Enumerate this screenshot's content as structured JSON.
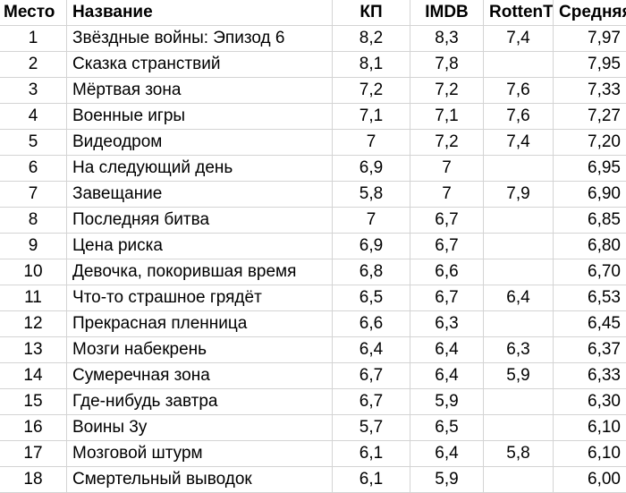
{
  "header": {
    "rank": "Место",
    "title": "Название",
    "kp": "КП",
    "imdb": "IMDB",
    "rotten": "RottenT",
    "avg": "Средняя"
  },
  "rows": [
    {
      "rank": "1",
      "title": "Звёздные войны: Эпизод 6",
      "kp": "8,2",
      "imdb": "8,3",
      "rotten": "7,4",
      "avg": "7,97"
    },
    {
      "rank": "2",
      "title": "Сказка странствий",
      "kp": "8,1",
      "imdb": "7,8",
      "rotten": "",
      "avg": "7,95"
    },
    {
      "rank": "3",
      "title": "Мёртвая зона",
      "kp": "7,2",
      "imdb": "7,2",
      "rotten": "7,6",
      "avg": "7,33"
    },
    {
      "rank": "4",
      "title": "Военные игры",
      "kp": "7,1",
      "imdb": "7,1",
      "rotten": "7,6",
      "avg": "7,27"
    },
    {
      "rank": "5",
      "title": "Видеодром",
      "kp": "7",
      "imdb": "7,2",
      "rotten": "7,4",
      "avg": "7,20"
    },
    {
      "rank": "6",
      "title": "На следующий день",
      "kp": "6,9",
      "imdb": "7",
      "rotten": "",
      "avg": "6,95"
    },
    {
      "rank": "7",
      "title": "Завещание",
      "kp": "5,8",
      "imdb": "7",
      "rotten": "7,9",
      "avg": "6,90"
    },
    {
      "rank": "8",
      "title": "Последняя битва",
      "kp": "7",
      "imdb": "6,7",
      "rotten": "",
      "avg": "6,85"
    },
    {
      "rank": "9",
      "title": "Цена риска",
      "kp": "6,9",
      "imdb": "6,7",
      "rotten": "",
      "avg": "6,80"
    },
    {
      "rank": "10",
      "title": "Девочка, покорившая время",
      "kp": "6,8",
      "imdb": "6,6",
      "rotten": "",
      "avg": "6,70"
    },
    {
      "rank": "11",
      "title": "Что-то страшное грядёт",
      "kp": "6,5",
      "imdb": "6,7",
      "rotten": "6,4",
      "avg": "6,53"
    },
    {
      "rank": "12",
      "title": "Прекрасная пленница",
      "kp": "6,6",
      "imdb": "6,3",
      "rotten": "",
      "avg": "6,45"
    },
    {
      "rank": "13",
      "title": "Мозги набекрень",
      "kp": "6,4",
      "imdb": "6,4",
      "rotten": "6,3",
      "avg": "6,37"
    },
    {
      "rank": "14",
      "title": "Сумеречная зона",
      "kp": "6,7",
      "imdb": "6,4",
      "rotten": "5,9",
      "avg": "6,33"
    },
    {
      "rank": "15",
      "title": "Где-нибудь завтра",
      "kp": "6,7",
      "imdb": "5,9",
      "rotten": "",
      "avg": "6,30"
    },
    {
      "rank": "16",
      "title": "Воины 3у",
      "kp": "5,7",
      "imdb": "6,5",
      "rotten": "",
      "avg": "6,10"
    },
    {
      "rank": "17",
      "title": "Мозговой штурм",
      "kp": "6,1",
      "imdb": "6,4",
      "rotten": "5,8",
      "avg": "6,10"
    },
    {
      "rank": "18",
      "title": "Смертельный выводок",
      "kp": "6,1",
      "imdb": "5,9",
      "rotten": "",
      "avg": "6,00"
    }
  ]
}
